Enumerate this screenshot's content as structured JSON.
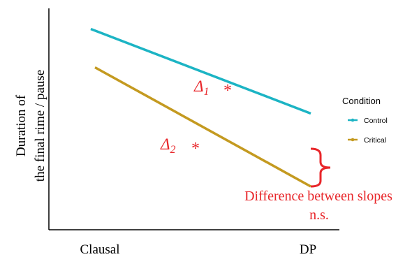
{
  "chart_data": {
    "type": "line",
    "categories": [
      "Clausal",
      "DP"
    ],
    "ylabel_lines": [
      "Duration of",
      "the final rime / pause"
    ],
    "series": [
      {
        "name": "Control",
        "color": "#1CB4C4",
        "values": [
          0.82,
          0.38
        ]
      },
      {
        "name": "Critical",
        "color": "#C49A20",
        "values": [
          0.62,
          0.0
        ]
      }
    ],
    "legend": {
      "title": "Condition",
      "position": "right"
    },
    "annotations": {
      "delta1": {
        "symbol": "Δ",
        "subscript": "1",
        "mark": "*"
      },
      "delta2": {
        "symbol": "Δ",
        "subscript": "2",
        "mark": "*"
      },
      "difference_line1": "Difference between slopes",
      "difference_line2": "n.s."
    },
    "annotation_color": "#E8262A",
    "grid": false
  }
}
